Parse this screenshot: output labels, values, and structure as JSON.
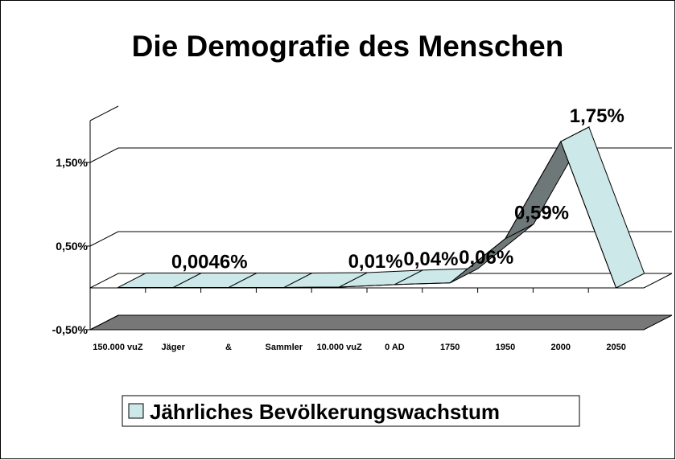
{
  "chart_data": {
    "type": "line",
    "title": "Die Demografie des Menschen",
    "categories": [
      "150.000 vuZ",
      "Jäger",
      "&",
      "Sammler",
      "10.000 vuZ",
      "0 AD",
      "1750",
      "1950",
      "2000",
      "2050"
    ],
    "series": [
      {
        "name": "Jährliches Bevölkerungswachstum",
        "color": "#cce8e8",
        "values": [
          0.0046,
          0.0046,
          0.0046,
          0.0046,
          0.01,
          0.04,
          0.06,
          0.59,
          1.75,
          0
        ],
        "value_labels": [
          null,
          "0,0046%",
          null,
          null,
          "0,01%",
          "0,04%",
          "0,06%",
          "0,59%",
          "1,75%",
          null
        ]
      }
    ],
    "ylim": [
      -0.5,
      2.0
    ],
    "yticks": [
      {
        "value": -0.5,
        "label": "-0,50%"
      },
      {
        "value": 0.5,
        "label": "0,50%"
      },
      {
        "value": 1.5,
        "label": "1,50%"
      }
    ],
    "grid": true,
    "legend": "bottom"
  }
}
